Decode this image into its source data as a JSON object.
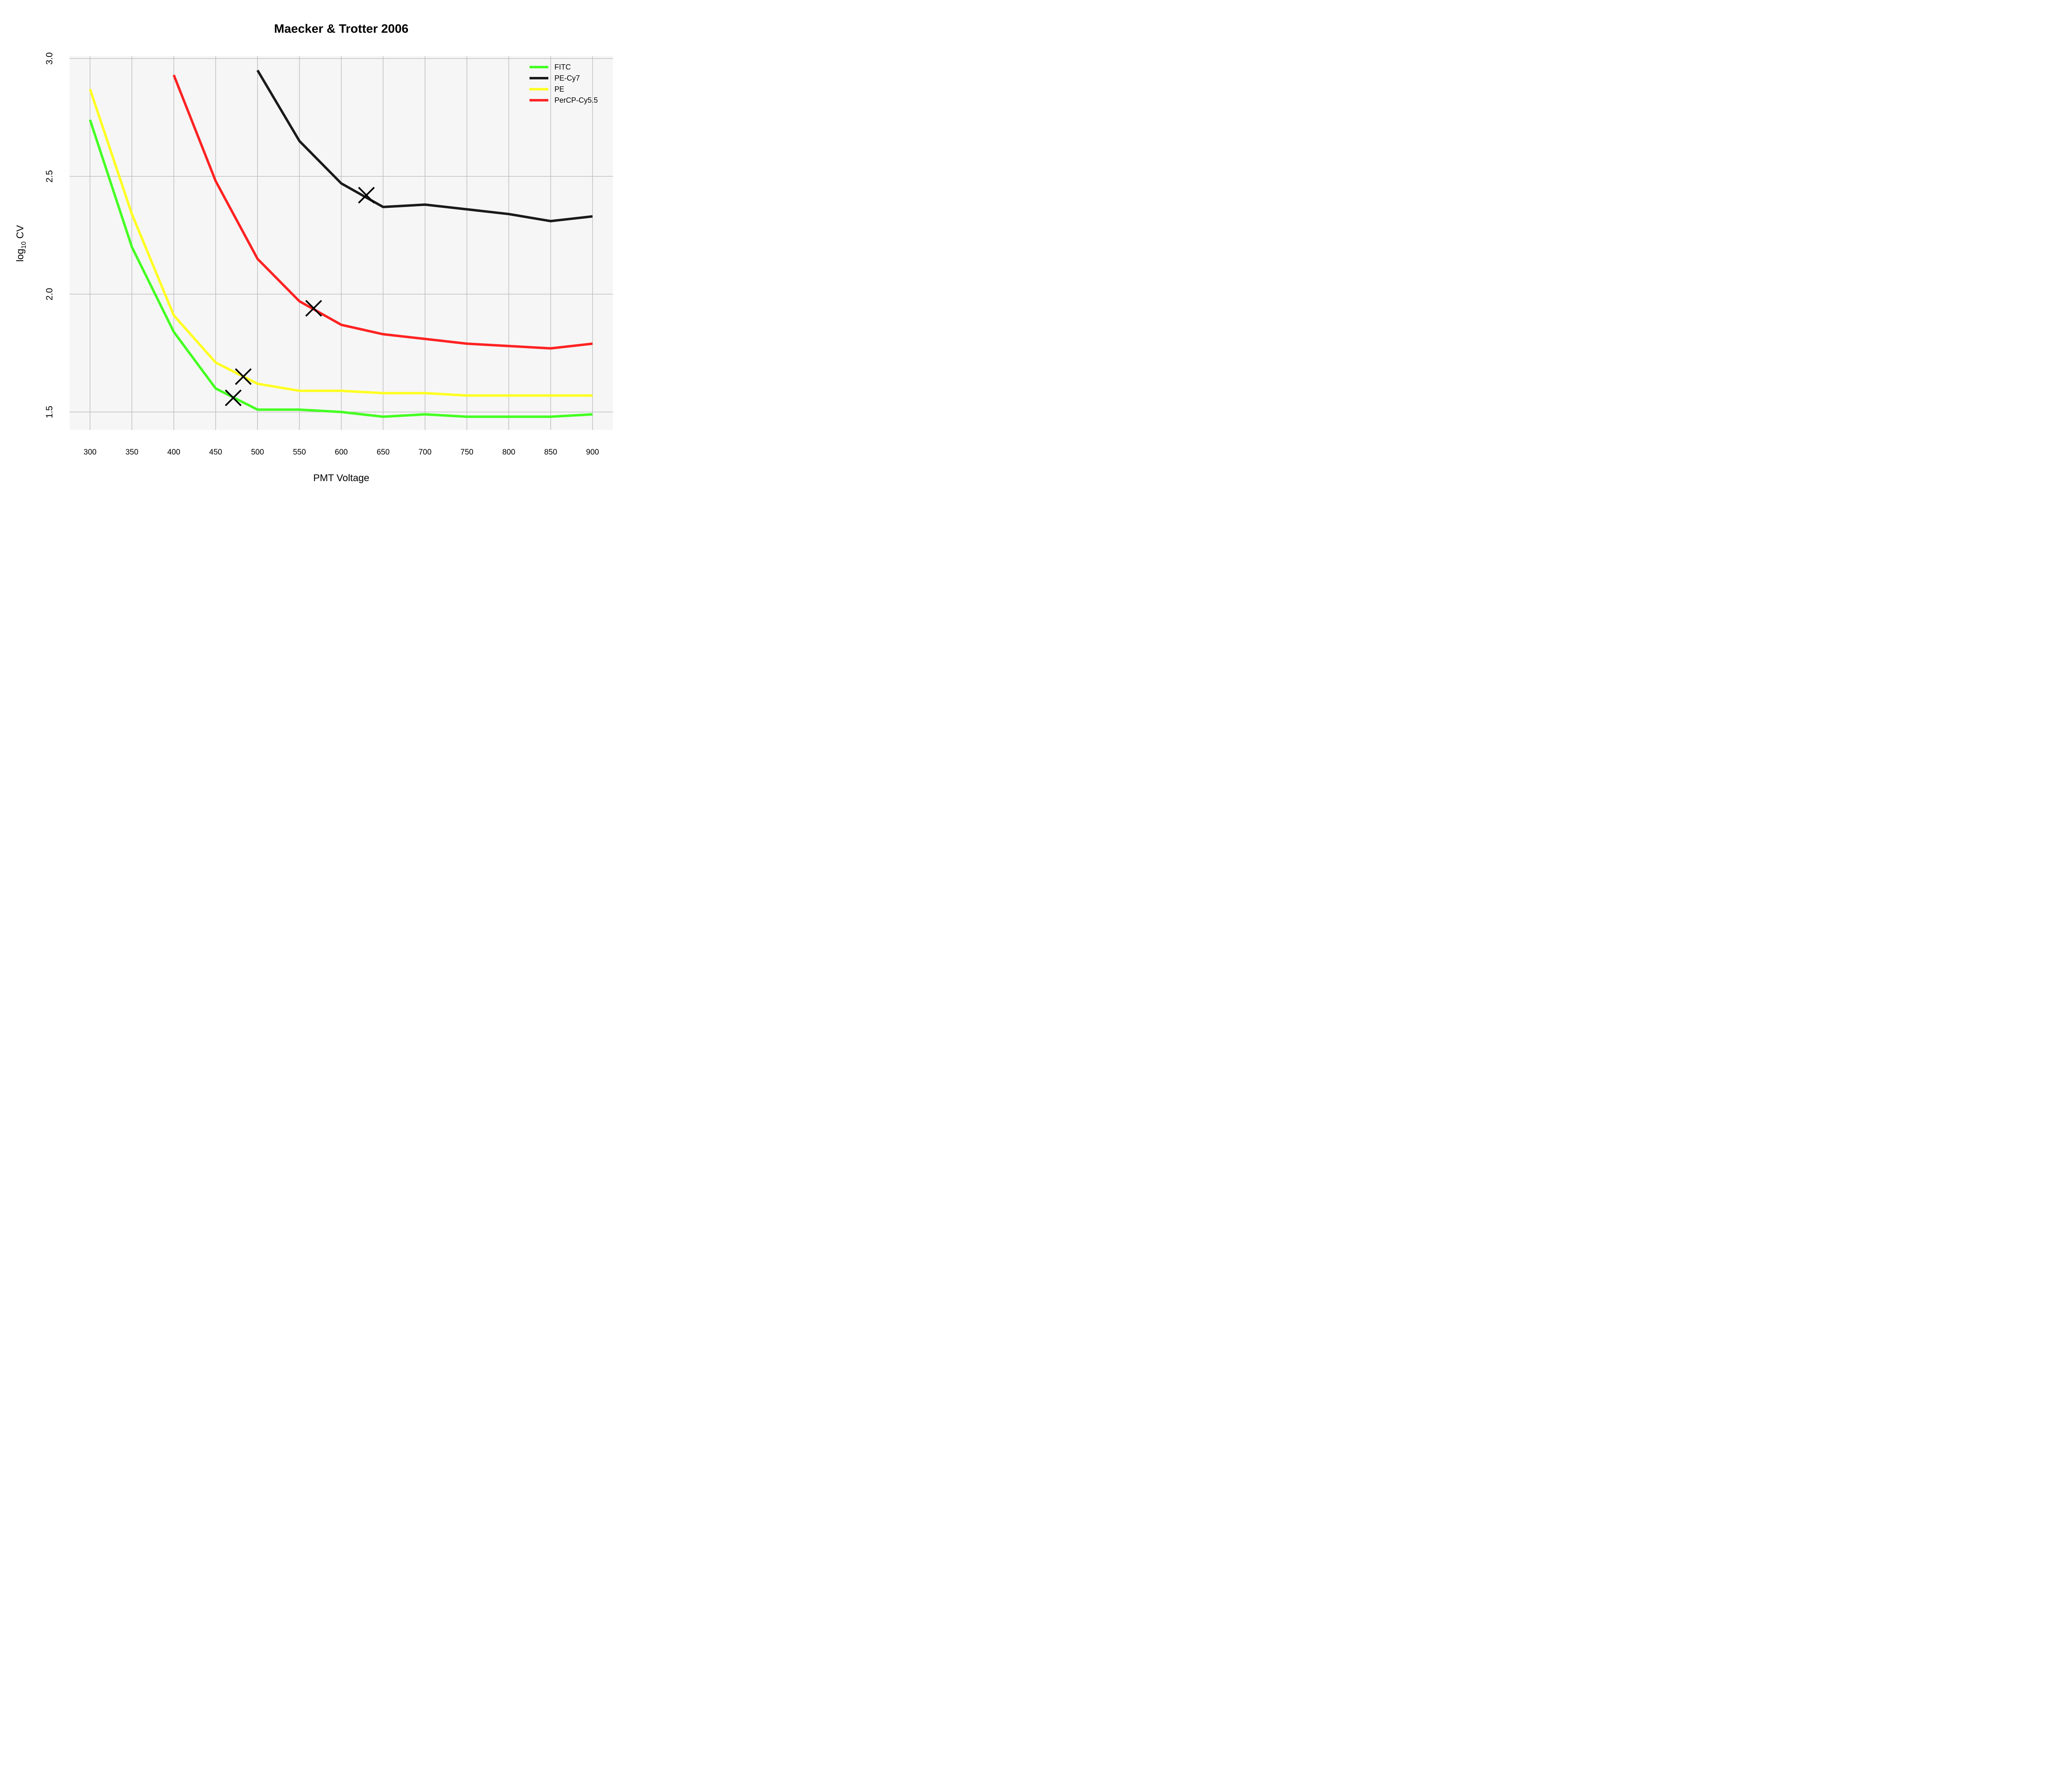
{
  "chart_data": {
    "type": "line",
    "title": "Maecker & Trotter 2006",
    "xlabel": "PMT Voltage",
    "ylabel_main": "log",
    "ylabel_sub": "10",
    "ylabel_tail": " CV",
    "xlim": [
      300,
      900
    ],
    "ylim": [
      1.5,
      3.0
    ],
    "x_ticks": [
      300,
      350,
      400,
      450,
      500,
      550,
      600,
      650,
      700,
      750,
      800,
      850,
      900
    ],
    "y_ticks": [
      1.5,
      2.0,
      2.5,
      3.0
    ],
    "y_tick_labels": [
      "1.5",
      "2.0",
      "2.5",
      "3.0"
    ],
    "grid": true,
    "legend_position": "top-right",
    "series": [
      {
        "name": "FITC",
        "color": "#44ff22",
        "x": [
          300,
          350,
          400,
          450,
          500,
          550,
          600,
          650,
          700,
          750,
          800,
          850,
          900
        ],
        "y": [
          2.74,
          2.2,
          1.84,
          1.6,
          1.51,
          1.51,
          1.5,
          1.48,
          1.49,
          1.48,
          1.48,
          1.48,
          1.49
        ]
      },
      {
        "name": "PE-Cy7",
        "color": "#1a1a1a",
        "x": [
          500,
          550,
          600,
          650,
          700,
          750,
          800,
          850,
          900
        ],
        "y": [
          2.95,
          2.65,
          2.47,
          2.37,
          2.38,
          2.36,
          2.34,
          2.31,
          2.33
        ]
      },
      {
        "name": "PE",
        "color": "#ffff22",
        "x": [
          300,
          350,
          400,
          450,
          500,
          550,
          600,
          650,
          700,
          750,
          800,
          850,
          900
        ],
        "y": [
          2.87,
          2.34,
          1.91,
          1.71,
          1.62,
          1.59,
          1.59,
          1.58,
          1.58,
          1.57,
          1.57,
          1.57,
          1.57
        ]
      },
      {
        "name": "PerCP-Cy5.5",
        "color": "#ff2222",
        "x": [
          400,
          450,
          500,
          550,
          600,
          650,
          700,
          750,
          800,
          850,
          900
        ],
        "y": [
          2.93,
          2.48,
          2.15,
          1.97,
          1.87,
          1.83,
          1.81,
          1.79,
          1.78,
          1.77,
          1.79
        ]
      }
    ],
    "markers": [
      {
        "x": 471,
        "y": 1.56
      },
      {
        "x": 483,
        "y": 1.65
      },
      {
        "x": 567,
        "y": 1.94
      },
      {
        "x": 630,
        "y": 2.42
      }
    ]
  }
}
